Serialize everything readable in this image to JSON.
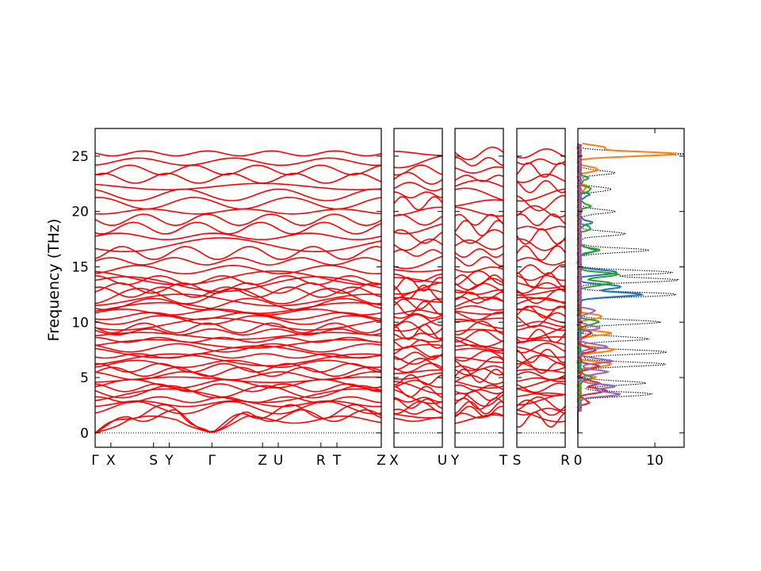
{
  "chart_data": {
    "type": "line",
    "title": "",
    "ylabel": "Frequency (THz)",
    "ylim": [
      -1.3,
      27.5
    ],
    "yticks": [
      0,
      5,
      10,
      15,
      20,
      25
    ],
    "band_color": "#ff0000",
    "zero_line_color": "#0000cc",
    "panels": [
      {
        "name": "main-path",
        "path_labels": [
          {
            "label": "Γ",
            "pos": 0.0
          },
          {
            "label": "X",
            "pos": 0.055
          },
          {
            "label": "S",
            "pos": 0.204
          },
          {
            "label": "Y",
            "pos": 0.259
          },
          {
            "label": "Γ",
            "pos": 0.408
          },
          {
            "label": "Z",
            "pos": 0.585
          },
          {
            "label": "U",
            "pos": 0.64
          },
          {
            "label": "R",
            "pos": 0.789
          },
          {
            "label": "T",
            "pos": 0.845
          },
          {
            "label": "Z",
            "pos": 1.0
          }
        ]
      },
      {
        "name": "x-u",
        "path_labels": [
          {
            "label": "X",
            "pos": 0.0
          },
          {
            "label": "U",
            "pos": 1.0
          }
        ]
      },
      {
        "name": "y-t",
        "path_labels": [
          {
            "label": "Y",
            "pos": 0.0
          },
          {
            "label": "T",
            "pos": 1.0
          }
        ]
      },
      {
        "name": "s-r",
        "path_labels": [
          {
            "label": "S",
            "pos": 0.0
          },
          {
            "label": "R",
            "pos": 1.0
          }
        ]
      }
    ],
    "dos": {
      "xlim": [
        0,
        13.8
      ],
      "xticks": [
        0,
        10
      ],
      "series": [
        {
          "color": "#000000",
          "style": "dotted",
          "peaks": [
            [
              3.5,
              9.5
            ],
            [
              4.5,
              8.5
            ],
            [
              6.2,
              11.2
            ],
            [
              7.3,
              11.5
            ],
            [
              8.5,
              9
            ],
            [
              10,
              10.5
            ],
            [
              12.5,
              12.8
            ],
            [
              13.8,
              13
            ],
            [
              14.5,
              12
            ],
            [
              16.5,
              9
            ],
            [
              18,
              6
            ],
            [
              20,
              4.5
            ],
            [
              22,
              4.2
            ],
            [
              23.5,
              4.5
            ],
            [
              25.2,
              13.5
            ]
          ]
        },
        {
          "color": "#1f77b4",
          "style": "solid",
          "peaks": [
            [
              13.2,
              5.5
            ],
            [
              12.5,
              8
            ],
            [
              14.5,
              5
            ],
            [
              16.5,
              2
            ],
            [
              19,
              1.5
            ],
            [
              21.5,
              1.2
            ]
          ]
        },
        {
          "color": "#ff7f0e",
          "style": "solid",
          "peaks": [
            [
              25.2,
              12.5
            ],
            [
              25.8,
              3
            ],
            [
              23.8,
              2.5
            ],
            [
              22.2,
              1
            ],
            [
              10.5,
              3
            ],
            [
              9,
              4
            ],
            [
              7.5,
              4.5
            ],
            [
              6.2,
              4.2
            ],
            [
              5,
              2
            ]
          ]
        },
        {
          "color": "#2ca02c",
          "style": "solid",
          "peaks": [
            [
              14.3,
              5
            ],
            [
              13.5,
              4
            ],
            [
              16.5,
              2.5
            ],
            [
              18.5,
              1.5
            ],
            [
              20.5,
              1.3
            ],
            [
              22,
              1.5
            ],
            [
              23,
              1
            ],
            [
              10,
              2.5
            ],
            [
              5,
              1.5
            ]
          ]
        },
        {
          "color": "#d62728",
          "style": "solid",
          "peaks": [
            [
              3.8,
              3.5
            ],
            [
              4.5,
              2.5
            ],
            [
              6,
              2.5
            ],
            [
              7.5,
              2
            ],
            [
              9,
              1.5
            ],
            [
              2.8,
              1.2
            ]
          ]
        },
        {
          "color": "#9467bd",
          "style": "solid",
          "peaks": [
            [
              3.5,
              5.2
            ],
            [
              4.2,
              4.5
            ],
            [
              5.5,
              3.5
            ],
            [
              6.5,
              4.2
            ],
            [
              7.8,
              3.5
            ],
            [
              9.5,
              2.5
            ],
            [
              11,
              2
            ]
          ]
        }
      ]
    }
  }
}
